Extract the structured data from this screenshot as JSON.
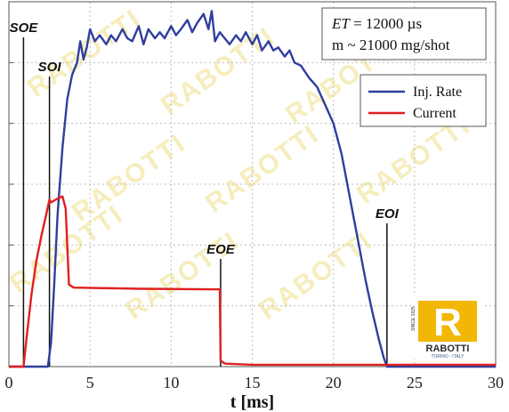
{
  "chart_data": {
    "type": "line",
    "title": "",
    "xlabel": "t [ms]",
    "ylabel": "",
    "xlim": [
      0,
      30
    ],
    "ylim": [
      0,
      6
    ],
    "x_ticks": [
      0,
      5,
      10,
      15,
      20,
      25,
      30
    ],
    "grid": true,
    "legend_position": "top-right",
    "info_box": {
      "line1_var": "ET",
      "line1_value": " = 12000 µs",
      "line2": "m ~ 21000 mg/shot"
    },
    "series": [
      {
        "name": "Inj. Rate",
        "color": "#2f3f9e",
        "x": [
          0,
          2.4,
          2.6,
          2.8,
          3.0,
          3.3,
          3.6,
          3.9,
          4.2,
          4.4,
          4.6,
          4.8,
          5.0,
          5.3,
          5.6,
          6.0,
          6.3,
          6.6,
          7.0,
          7.3,
          7.6,
          8.0,
          8.3,
          8.6,
          9.0,
          9.3,
          9.6,
          10.0,
          10.3,
          10.6,
          11.0,
          11.3,
          11.6,
          12.0,
          12.3,
          12.5,
          12.7,
          13.0,
          13.3,
          13.6,
          14.0,
          14.3,
          14.6,
          15.0,
          15.3,
          15.6,
          16.0,
          16.3,
          16.6,
          17.0,
          17.3,
          17.6,
          18.0,
          18.5,
          19.0,
          19.5,
          20.0,
          20.5,
          21.0,
          21.5,
          22.0,
          22.4,
          22.8,
          23.1,
          23.3,
          30
        ],
        "values": [
          0,
          0,
          0.4,
          1.4,
          2.5,
          3.6,
          4.4,
          4.8,
          5.0,
          5.35,
          5.05,
          5.25,
          5.55,
          5.35,
          5.45,
          5.3,
          5.45,
          5.35,
          5.55,
          5.4,
          5.35,
          5.6,
          5.3,
          5.55,
          5.4,
          5.5,
          5.4,
          5.6,
          5.45,
          5.55,
          5.7,
          5.5,
          5.65,
          5.8,
          5.55,
          5.85,
          5.35,
          5.5,
          5.4,
          5.3,
          5.45,
          5.35,
          5.5,
          5.3,
          5.45,
          5.2,
          5.35,
          5.2,
          5.25,
          5.1,
          5.2,
          5.0,
          4.95,
          4.75,
          4.6,
          4.3,
          4.0,
          3.5,
          2.8,
          2.1,
          1.4,
          0.9,
          0.45,
          0.15,
          0,
          0
        ]
      },
      {
        "name": "Current",
        "color": "#e02020",
        "x": [
          0,
          0.9,
          1.1,
          1.4,
          1.7,
          2.0,
          2.3,
          2.5,
          2.6,
          2.9,
          3.3,
          3.5,
          3.7,
          4.0,
          8.0,
          13.0,
          13.05,
          13.3,
          15.0,
          30
        ],
        "values": [
          0,
          0,
          0.5,
          1.2,
          1.75,
          2.15,
          2.5,
          2.75,
          2.7,
          2.75,
          2.8,
          2.6,
          1.35,
          1.3,
          1.28,
          1.27,
          0.1,
          0.05,
          0.03,
          0.03
        ]
      }
    ],
    "events": [
      {
        "label": "SOE",
        "x": 0.9
      },
      {
        "label": "SOI",
        "x": 2.5
      },
      {
        "label": "EOE",
        "x": 13.05
      },
      {
        "label": "EOI",
        "x": 23.3
      }
    ],
    "watermark": "RABOTTI",
    "logo": {
      "letter": "R",
      "name": "RABOTTI",
      "subtitle": "TORINO - ITALY",
      "since": "SINCE 1925"
    }
  }
}
